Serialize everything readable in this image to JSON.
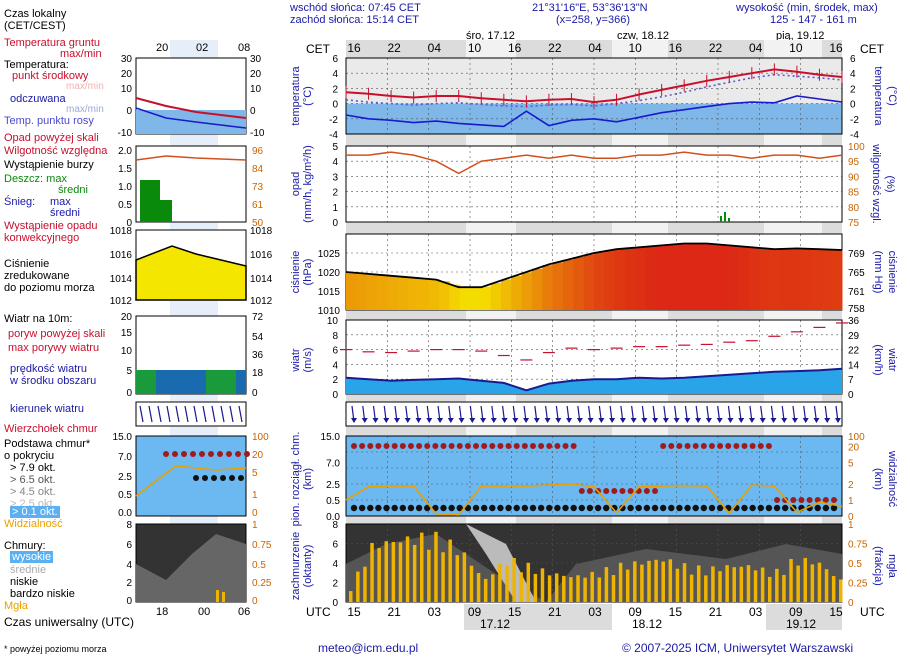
{
  "header": {
    "sunrise": "wschód słońca: 07:45 CET",
    "sunset": "zachód słońca: 15:14 CET",
    "coords": "21°31'16\"E, 53°36'13\"N",
    "grid": "(x=258, y=366)",
    "elev_title": "wysokość (min, środek, max)",
    "elev_values": "125 - 147 - 161 m"
  },
  "days_top": [
    "śro, 17.12",
    "czw, 18.12",
    "pią, 19.12"
  ],
  "days_bottom": [
    "17.12",
    "18.12",
    "19.12"
  ],
  "cet_label": "CET",
  "utc_label": "UTC",
  "cet_hours": [
    "16",
    "22",
    "04",
    "10",
    "16",
    "22",
    "04",
    "10",
    "16",
    "22",
    "04",
    "10",
    "16"
  ],
  "utc_hours": [
    "15",
    "21",
    "03",
    "09",
    "15",
    "21",
    "03",
    "09",
    "15",
    "21",
    "03",
    "09",
    "15"
  ],
  "legend": {
    "local_time": "Czas lokalny",
    "local_time2": "(CET/CEST)",
    "local_hours": [
      "20",
      "02",
      "08"
    ],
    "ground_temp": "Temperatura gruntu",
    "maxmin": "max/min",
    "temperature": "Temperatura:",
    "midpoint": "punkt środkowy",
    "maxmin2": "max/min",
    "feels": "odczuwana",
    "maxmin3": "max/min",
    "dew": "Temp. punktu rosy",
    "precip_above": "Opad powyżej skali",
    "humidity": "Wilgotność względna",
    "storm": "Wystąpienie burzy",
    "rain": "Deszcz: max",
    "rain_mid": "średni",
    "snow": "Śnieg:",
    "snow_max": "max",
    "snow_mid": "średni",
    "conv1": "Wystąpienie opadu",
    "conv2": "konwekcyjnego",
    "pressure1": "Ciśnienie",
    "pressure2": "zredukowane",
    "pressure3": "do poziomu morza",
    "wind_at": "Wiatr na 10m:",
    "gust_above": "poryw powyżej skali",
    "gust_max": "max porywy wiatru",
    "wind_speed": "prędkość wiatru",
    "wind_area": "w środku obszaru",
    "wind_dir": "kierunek wiatru",
    "cloud_top": "Wierzchołek chmur",
    "cloud_base1": "Podstawa chmur*",
    "cloud_base2": "o pokryciu",
    "okt": [
      "> 7.9 okt.",
      "> 6.5 okt.",
      "> 4.5 okt.",
      "> 2.5 okt.",
      "> 0.1 okt."
    ],
    "visibility": "Widzialność",
    "clouds": "Chmury:",
    "cl_high": "wysokie",
    "cl_mid": "średnie",
    "cl_low": "niskie",
    "cl_vlow": "bardzo niskie",
    "fog": "Mgła",
    "utc_time": "Czas uniwersalny (UTC)",
    "utc_hours": [
      "18",
      "00",
      "06"
    ],
    "footnote": "* powyżej poziomu morza"
  },
  "axes": {
    "temp_left": "temperatura",
    "temp_left2": "(°C)",
    "temp_right": "temperatura",
    "temp_right2": "(°C)",
    "precip_left": "opad",
    "precip_left2": "(mm/h, kg/m²/h)",
    "hum_right": "wilgotność wzgl.",
    "hum_right2": "(%)",
    "pres_left": "ciśnienie",
    "pres_left2": "(hPa)",
    "pres_right": "ciśnienie",
    "pres_right2": "(mm Hg)",
    "wind_left": "wiatr",
    "wind_left2": "(m/s)",
    "wind_right": "wiatr",
    "wind_right2": "(km/h)",
    "cloud_left": "pion. rozciągł. chm.",
    "cloud_left2": "(km)",
    "vis_right": "widzialność",
    "vis_right2": "(km)",
    "cover_left": "zachmurzenie",
    "cover_left2": "(oktanty)",
    "fog_right": "mgła",
    "fog_right2": "(frakcja)"
  },
  "footer": {
    "email": "meteo@icm.edu.pl",
    "copyright": "© 2007-2025 ICM, Uniwersytet Warszawski"
  },
  "colors": {
    "blue_text": "#1a1aa6",
    "red": "#c8102e",
    "temp_blue_fill": "#7fb7e8",
    "pressure_low": "#f5e600",
    "pressure_high": "#e8321e",
    "wind_fill": "#2aa4e8",
    "vis_orange": "#e8a000",
    "fog_bar": "#f0b400"
  },
  "chart_data": [
    {
      "type": "line",
      "name": "temperatura",
      "ylim": [
        -4,
        6
      ],
      "yticks": [
        -4,
        -2,
        0,
        2,
        4,
        6
      ],
      "series": [
        {
          "name": "punkt środkowy",
          "values": [
            1.5,
            1.3,
            1.0,
            0.8,
            1.0,
            1.0,
            0.7,
            0.5,
            0.3,
            0.5,
            0.6,
            0.2,
            0.5,
            1.2,
            1.8,
            2.4,
            3.0,
            3.5,
            4.0,
            4.5,
            4.2,
            3.8,
            3.5
          ]
        },
        {
          "name": "odczuwana",
          "values": [
            -1.5,
            -2.0,
            -2.2,
            -2.5,
            -2.3,
            -2.6,
            -2.8,
            -3.0,
            -1.0,
            -2.9,
            -2.2,
            -2.0,
            -2.4,
            -1.8,
            -1.2,
            -0.8,
            -0.4,
            0.0,
            0.2,
            0.1,
            1.0,
            0.6,
            0.2
          ]
        },
        {
          "name": "Temp. punktu rosy",
          "values": [
            0.5,
            0.2,
            0.0,
            -0.2,
            0.0,
            0.1,
            -0.1,
            -0.3,
            -0.4,
            -0.2,
            -0.1,
            -0.3,
            0.0,
            0.4,
            0.9,
            1.5,
            2.2,
            2.8,
            3.4,
            3.8,
            3.6,
            3.4,
            3.1
          ]
        }
      ]
    },
    {
      "type": "line",
      "name": "wilgotność",
      "ylim": [
        75,
        100
      ],
      "series": [
        {
          "name": "Wilgotność względna",
          "values": [
            97,
            97,
            98,
            97,
            95,
            91,
            95,
            96,
            97,
            96,
            97,
            96,
            96,
            97,
            97,
            98,
            97,
            97,
            96,
            97,
            97,
            96,
            97
          ]
        }
      ]
    },
    {
      "type": "area",
      "name": "ciśnienie",
      "ylim": [
        1010,
        1030
      ],
      "series": [
        {
          "name": "Ciśnienie",
          "values": [
            1020,
            1019.5,
            1019,
            1018.5,
            1018,
            1016,
            1016,
            1018,
            1020,
            1022,
            1023.5,
            1025,
            1026,
            1026.5,
            1027,
            1027.5,
            1027.5,
            1027,
            1026.5,
            1026,
            1026.2,
            1026,
            1025.8
          ]
        }
      ]
    },
    {
      "type": "line",
      "name": "wiatr",
      "ylim": [
        0,
        10
      ],
      "series": [
        {
          "name": "prędkość wiatru",
          "values": [
            2.2,
            2.0,
            1.8,
            1.9,
            2.0,
            2.1,
            1.8,
            1.5,
            0.5,
            1.4,
            1.8,
            2.0,
            2.0,
            2.2,
            2.1,
            2.2,
            2.4,
            2.6,
            2.8,
            3.0,
            3.1,
            3.2,
            3.4
          ]
        },
        {
          "name": "max porywy wiatru",
          "values": [
            6.0,
            5.7,
            5.6,
            5.8,
            6.0,
            6.0,
            5.8,
            5.2,
            4.6,
            5.6,
            6.2,
            6.0,
            6.2,
            6.4,
            6.4,
            6.6,
            6.7,
            7.0,
            7.2,
            7.8,
            8.4,
            9.0,
            9.6
          ]
        }
      ]
    },
    {
      "type": "line",
      "name": "widzialność",
      "ylim": [
        0,
        15
      ],
      "series": [
        {
          "name": "Widzialność",
          "values": [
            3,
            5.5,
            5.6,
            5.6,
            0.4,
            0.2,
            5.6,
            5.6,
            5.6,
            5.8,
            6.0,
            5.5,
            0.6,
            5.5,
            5.6,
            5.7,
            5.6,
            0.5,
            5.8,
            5.6,
            0.7,
            2.6,
            1.8
          ]
        }
      ]
    },
    {
      "type": "bar",
      "name": "mgła",
      "ylim": [
        0,
        1
      ],
      "values": [
        0.2,
        0.8,
        0.85,
        0.9,
        0.9,
        0.7,
        0.3,
        0.6,
        0.5,
        0.4,
        0.35,
        0.4,
        0.5,
        0.55,
        0.6,
        0.5,
        0.45,
        0.5,
        0.5,
        0.4,
        0.6,
        0.55,
        0.3
      ]
    }
  ]
}
